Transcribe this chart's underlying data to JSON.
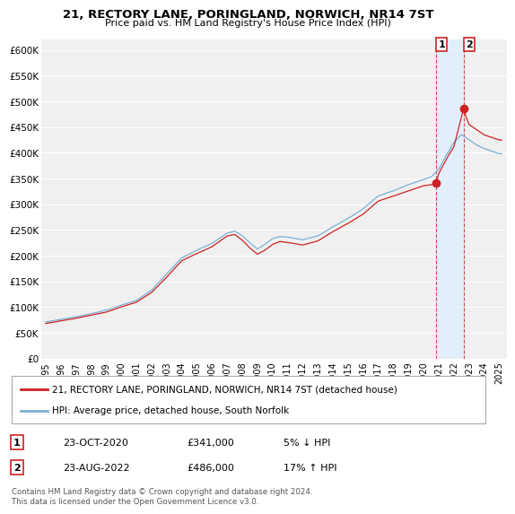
{
  "title": "21, RECTORY LANE, PORINGLAND, NORWICH, NR14 7ST",
  "subtitle": "Price paid vs. HM Land Registry's House Price Index (HPI)",
  "ylabel_ticks": [
    "£0",
    "£50K",
    "£100K",
    "£150K",
    "£200K",
    "£250K",
    "£300K",
    "£350K",
    "£400K",
    "£450K",
    "£500K",
    "£550K",
    "£600K"
  ],
  "ytick_values": [
    0,
    50000,
    100000,
    150000,
    200000,
    250000,
    300000,
    350000,
    400000,
    450000,
    500000,
    550000,
    600000
  ],
  "ylim": [
    0,
    620000
  ],
  "xlim_start": 1994.7,
  "xlim_end": 2025.5,
  "xtick_years": [
    1995,
    1996,
    1997,
    1998,
    1999,
    2000,
    2001,
    2002,
    2003,
    2004,
    2005,
    2006,
    2007,
    2008,
    2009,
    2010,
    2011,
    2012,
    2013,
    2014,
    2015,
    2016,
    2017,
    2018,
    2019,
    2020,
    2021,
    2022,
    2023,
    2024,
    2025
  ],
  "background_color": "#ffffff",
  "plot_bg_color": "#f0f0f0",
  "grid_color": "#ffffff",
  "hpi_color": "#7ab0d4",
  "price_color": "#cc2222",
  "sale1_x": 2020.81,
  "sale1_y": 341000,
  "sale2_x": 2022.64,
  "sale2_y": 486000,
  "sale1_label": "1",
  "sale2_label": "2",
  "legend_line1": "21, RECTORY LANE, PORINGLAND, NORWICH, NR14 7ST (detached house)",
  "legend_line2": "HPI: Average price, detached house, South Norfolk",
  "table_row1_num": "1",
  "table_row1_date": "23-OCT-2020",
  "table_row1_price": "£341,000",
  "table_row1_hpi": "5% ↓ HPI",
  "table_row2_num": "2",
  "table_row2_date": "23-AUG-2022",
  "table_row2_price": "£486,000",
  "table_row2_hpi": "17% ↑ HPI",
  "footer": "Contains HM Land Registry data © Crown copyright and database right 2024.\nThis data is licensed under the Open Government Licence v3.0.",
  "shade_x1": 2020.81,
  "shade_x2": 2022.64,
  "shade_color": "#ddeeff"
}
